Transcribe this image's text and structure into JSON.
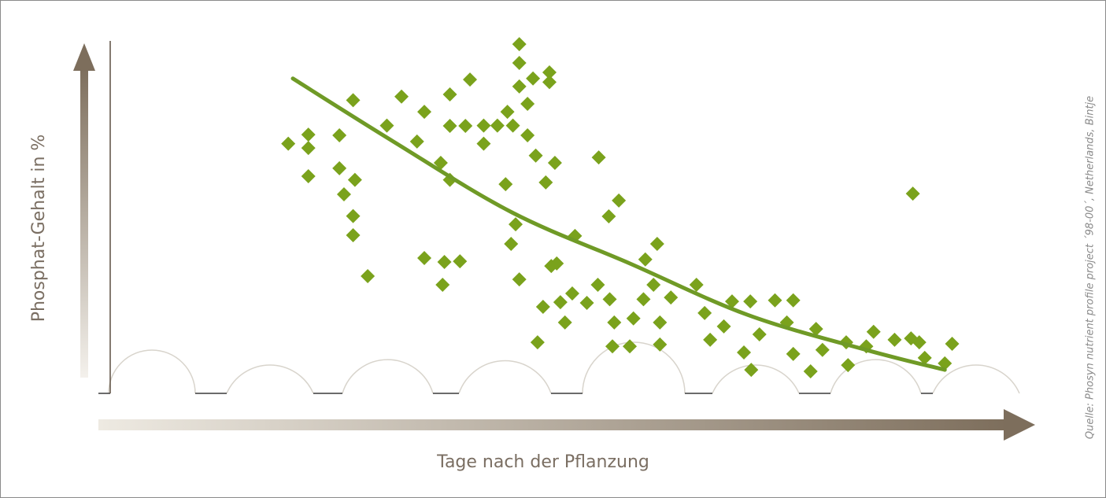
{
  "chart_data": {
    "type": "scatter",
    "x_label": "Tage nach der Pflanzung",
    "y_label": "Phosphat-Gehalt in %",
    "source": "Quelle: Phosyn nutrient profile project ´98-00´, Netherlands, Bintje",
    "xlim": [
      0,
      100
    ],
    "ylim": [
      0,
      100
    ],
    "series": [
      {
        "type": "scatter",
        "color": "#7aa21c",
        "x": [
          19.5,
          21.7,
          21.7,
          21.7,
          25.1,
          25.1,
          25.6,
          26.6,
          26.8,
          26.6,
          26.6,
          28.2,
          30.3,
          31.9,
          33.6,
          34.4,
          34.4,
          36.2,
          36.4,
          36.6,
          37.2,
          37.2,
          37.2,
          38.3,
          38.9,
          39.4,
          40.9,
          40.9,
          42.4,
          43.3,
          43.5,
          44.1,
          44.8,
          44.8,
          44.8,
          45.7,
          45.7,
          46.3,
          48.1,
          48.1,
          46.6,
          47.7,
          48.7,
          44.4,
          43.9,
          44.8,
          48.3,
          48.9,
          50.9,
          47.4,
          46.8,
          49.3,
          49.8,
          50.6,
          52.2,
          53.5,
          54.6,
          55.7,
          53.4,
          54.7,
          55.2,
          55,
          56.9,
          57.3,
          58.4,
          58.6,
          59.5,
          59.9,
          60.2,
          60.2,
          61.4,
          64.2,
          65.1,
          65.7,
          68.1,
          67.2,
          70.1,
          69.4,
          70.2,
          71.1,
          72.8,
          74.1,
          74.8,
          74.8,
          76.7,
          77.3,
          78,
          80.6,
          80.8,
          83.6,
          82.8,
          85.9,
          87.7,
          88.6,
          87.9,
          89.2,
          91.4,
          92.2
        ],
        "values": [
          69,
          71.5,
          67.8,
          60,
          71.3,
          62.2,
          55,
          81,
          59,
          49,
          43.7,
          32.4,
          74,
          82,
          69.6,
          77.8,
          37.4,
          63.7,
          30,
          36.3,
          82.6,
          73.9,
          59,
          36.5,
          73.9,
          86.7,
          74,
          69,
          74,
          57.8,
          77.8,
          74,
          96.5,
          91.3,
          84.8,
          80,
          71.3,
          87,
          88.7,
          86,
          65.7,
          58.3,
          63.7,
          46.7,
          41.3,
          31.5,
          35.2,
          35.9,
          43.5,
          23.9,
          14.1,
          25.2,
          19.6,
          27.6,
          25,
          65.2,
          48.9,
          53.3,
          30,
          26,
          19.6,
          13,
          13,
          20.7,
          26,
          37,
          30,
          41.3,
          19.6,
          13.5,
          26.5,
          30,
          22.2,
          14.8,
          25.4,
          18.5,
          25.4,
          11.3,
          6.5,
          16.3,
          25.7,
          19.6,
          25.7,
          10.9,
          6.1,
          17.8,
          12,
          14.1,
          7.8,
          17,
          13,
          14.8,
          15.2,
          14.1,
          55.2,
          9.8,
          8.3,
          13.7
        ]
      },
      {
        "type": "line",
        "color": "#6f9a26",
        "x": [
          20,
          31,
          44,
          56.9,
          69.8,
          82.8,
          91.4
        ],
        "values": [
          87,
          69.6,
          50,
          35.9,
          21.7,
          12,
          6.5
        ]
      }
    ]
  }
}
